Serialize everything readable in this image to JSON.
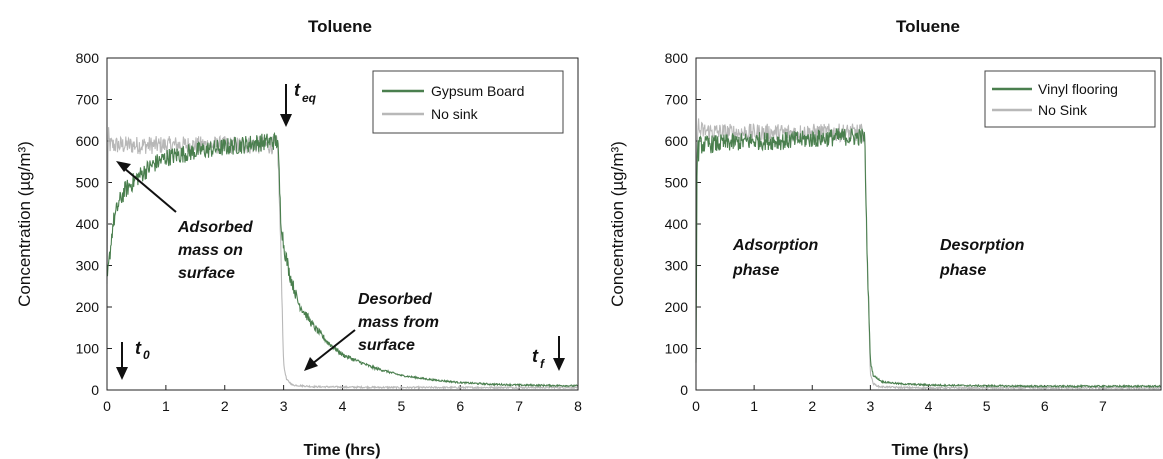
{
  "chart_data": [
    {
      "type": "line",
      "title": "Toluene",
      "xlabel": "Time (hrs)",
      "ylabel": "Concentration (µg/m³)",
      "xlim": [
        0,
        8
      ],
      "ylim": [
        0,
        800
      ],
      "xticks": [
        "0",
        "1",
        "2",
        "3",
        "4",
        "5",
        "6",
        "7",
        "8"
      ],
      "yticks": [
        "0",
        "100",
        "200",
        "300",
        "400",
        "500",
        "600",
        "700",
        "800"
      ],
      "legend": "top-right",
      "series": [
        {
          "name": "Gypsum Board",
          "color": "#4a7f4e",
          "x": [
            0.0,
            0.05,
            0.1,
            0.2,
            0.3,
            0.5,
            0.75,
            1.0,
            1.5,
            2.0,
            2.5,
            2.9,
            2.95,
            3.0,
            3.1,
            3.25,
            3.5,
            3.75,
            4.0,
            4.5,
            5.0,
            5.5,
            6.0,
            6.5,
            7.0,
            7.5,
            8.0
          ],
          "y": [
            260,
            330,
            400,
            450,
            480,
            510,
            540,
            560,
            575,
            585,
            595,
            600,
            420,
            350,
            280,
            210,
            155,
            115,
            85,
            55,
            35,
            25,
            18,
            14,
            12,
            11,
            10
          ]
        },
        {
          "name": "No sink",
          "color": "#b8b8b8",
          "x": [
            0.0,
            0.02,
            0.05,
            0.5,
            1.0,
            1.5,
            2.0,
            2.5,
            2.9,
            2.95,
            3.0,
            3.05,
            3.15,
            3.5,
            4.0,
            5.0,
            6.0,
            7.0,
            8.0
          ],
          "y": [
            250,
            600,
            590,
            590,
            590,
            590,
            590,
            590,
            590,
            350,
            60,
            25,
            12,
            8,
            7,
            6,
            6,
            6,
            6
          ]
        }
      ],
      "annotations": {
        "adsorbed": [
          "Adsorbed",
          "mass on",
          "surface"
        ],
        "desorbed": [
          "Desorbed",
          "mass from",
          "surface"
        ],
        "t0_main": "t",
        "t0_sub": "0",
        "teq_main": "t",
        "teq_sub": "eq",
        "tf_main": "t",
        "tf_sub": "f"
      }
    },
    {
      "type": "line",
      "title": "Toluene",
      "xlabel": "Time (hrs)",
      "ylabel": "Concentration (µg/m³)",
      "xlim": [
        0,
        8
      ],
      "ylim": [
        0,
        800
      ],
      "xticks": [
        "0",
        "1",
        "2",
        "3",
        "4",
        "5",
        "6",
        "7"
      ],
      "yticks": [
        "0",
        "100",
        "200",
        "300",
        "400",
        "500",
        "600",
        "700",
        "800"
      ],
      "legend": "top-right",
      "series": [
        {
          "name": "Vinyl flooring",
          "color": "#4a7f4e",
          "x": [
            0.0,
            0.02,
            0.05,
            0.5,
            1.0,
            1.5,
            2.0,
            2.5,
            2.9,
            2.95,
            3.0,
            3.05,
            3.2,
            3.5,
            4.0,
            5.0,
            6.0,
            7.0,
            8.0
          ],
          "y": [
            70,
            560,
            590,
            595,
            600,
            600,
            605,
            610,
            610,
            300,
            70,
            35,
            20,
            15,
            12,
            10,
            9,
            9,
            9
          ]
        },
        {
          "name": "No Sink",
          "color": "#b8b8b8",
          "x": [
            0.0,
            0.02,
            0.05,
            0.5,
            1.0,
            1.5,
            2.0,
            2.5,
            2.9,
            2.95,
            3.0,
            3.05,
            3.15,
            3.5,
            4.0,
            5.0,
            6.0,
            7.0,
            8.0
          ],
          "y": [
            200,
            640,
            625,
            620,
            620,
            620,
            620,
            620,
            620,
            300,
            40,
            15,
            8,
            6,
            5,
            5,
            5,
            5,
            5
          ]
        }
      ],
      "annotations": {
        "adsorption": [
          "Adsorption",
          "phase"
        ],
        "desorption": [
          "Desorption",
          "phase"
        ]
      }
    }
  ]
}
